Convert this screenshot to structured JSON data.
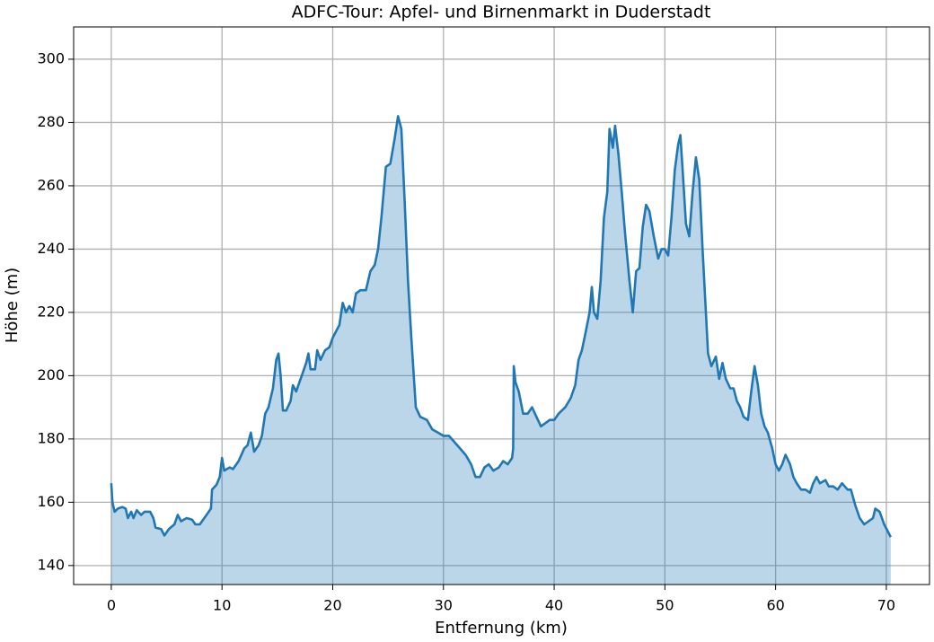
{
  "chart_data": {
    "type": "area",
    "title": "ADFC-Tour: Apfel- und Birnenmarkt in Duderstadt",
    "xlabel": "Entfernung (km)",
    "ylabel": "Höhe (m)",
    "color": "#1f77b4",
    "grid": true,
    "xlim": [
      -3.4,
      73.9
    ],
    "ylim": [
      134,
      310.2
    ],
    "xticks": [
      0,
      10,
      20,
      30,
      40,
      50,
      60,
      70
    ],
    "yticks": [
      140,
      160,
      180,
      200,
      220,
      240,
      260,
      280,
      300
    ],
    "x": [
      0,
      0.1,
      0.3,
      0.6,
      1,
      1.3,
      1.5,
      1.8,
      2,
      2.3,
      2.7,
      3,
      3.5,
      3.8,
      4,
      4.5,
      4.8,
      5.2,
      5.7,
      6,
      6.3,
      6.8,
      7.3,
      7.6,
      8,
      8.5,
      9,
      9.1,
      9.5,
      9.8,
      10,
      10.2,
      10.7,
      11,
      11.5,
      12,
      12.3,
      12.6,
      12.9,
      13.3,
      13.6,
      13.9,
      14.2,
      14.6,
      14.9,
      15.1,
      15.3,
      15.5,
      15.8,
      16.2,
      16.4,
      16.7,
      17,
      17.3,
      17.6,
      17.8,
      18,
      18.4,
      18.6,
      18.9,
      19.3,
      19.7,
      20,
      20.3,
      20.6,
      20.9,
      21.2,
      21.5,
      21.8,
      22.1,
      22.5,
      23,
      23.4,
      23.8,
      24.1,
      24.4,
      24.8,
      25.2,
      25.6,
      25.9,
      26.2,
      26.5,
      26.8,
      27.1,
      27.3,
      27.5,
      27.9,
      28.5,
      29,
      29.5,
      30,
      30.5,
      31,
      31.5,
      32,
      32.5,
      32.9,
      33.3,
      33.7,
      34.1,
      34.5,
      35,
      35.4,
      35.8,
      36.2,
      36.3,
      36.35,
      36.5,
      36.8,
      37.2,
      37.6,
      38,
      38.4,
      38.8,
      39.2,
      39.6,
      40,
      40.4,
      41,
      41.5,
      41.9,
      42.2,
      42.5,
      42.8,
      43.2,
      43.4,
      43.6,
      43.9,
      44.2,
      44.5,
      44.8,
      45,
      45.3,
      45.5,
      45.8,
      46.1,
      46.4,
      46.8,
      47.1,
      47.4,
      47.7,
      48,
      48.3,
      48.6,
      49,
      49.4,
      49.7,
      50,
      50.3,
      50.6,
      50.9,
      51.2,
      51.4,
      51.6,
      51.9,
      52.2,
      52.5,
      52.8,
      53.1,
      53.4,
      53.7,
      53.9,
      54.2,
      54.6,
      54.9,
      55.2,
      55.5,
      55.9,
      56.2,
      56.5,
      56.8,
      57.1,
      57.5,
      57.8,
      58.1,
      58.4,
      58.7,
      59,
      59.3,
      59.7,
      60,
      60.3,
      60.6,
      60.9,
      61.3,
      61.6,
      61.9,
      62.3,
      62.7,
      63.1,
      63.4,
      63.7,
      64,
      64.5,
      64.8,
      65.2,
      65.6,
      66,
      66.5,
      66.8,
      67.2,
      67.6,
      68,
      68.4,
      68.8,
      69,
      69.4,
      69.8,
      70.1,
      70.4
    ],
    "values": [
      166,
      160,
      157,
      158,
      158.5,
      158,
      155,
      157,
      155,
      157.5,
      156,
      157,
      157,
      155,
      152,
      151.5,
      149.5,
      151.5,
      153,
      156,
      154,
      155,
      154.5,
      153,
      153,
      155.5,
      158,
      164,
      165.5,
      168,
      174,
      170,
      171,
      170.5,
      173,
      177,
      178,
      182,
      176,
      178,
      181,
      188,
      190,
      196,
      205,
      207,
      200,
      189,
      189,
      192,
      197,
      195,
      198,
      201,
      204,
      207,
      202,
      202,
      208,
      205,
      208,
      209,
      212,
      214,
      216,
      223,
      220,
      222,
      220,
      226,
      227,
      227,
      233,
      235,
      240,
      250,
      266,
      267,
      275,
      282,
      278,
      255,
      230,
      212,
      201,
      190,
      187,
      186,
      183,
      182,
      181,
      181,
      179,
      177,
      175,
      172,
      168,
      168,
      171,
      172,
      170,
      171,
      173,
      172,
      174,
      177,
      203,
      198,
      195,
      188,
      188,
      190,
      187,
      184,
      185,
      186,
      186,
      188,
      190,
      193,
      197,
      205,
      208,
      213,
      220,
      228,
      220,
      218,
      230,
      250,
      258,
      278,
      272,
      279,
      270,
      258,
      245,
      230,
      220,
      233,
      234,
      247,
      254,
      252,
      244,
      237,
      240,
      240,
      238,
      250,
      265,
      273,
      276,
      265,
      248,
      244,
      258,
      269,
      262,
      240,
      220,
      207,
      203,
      206,
      199,
      204,
      199,
      196,
      196,
      192,
      190,
      187,
      186,
      195,
      203,
      197,
      188,
      184,
      182,
      177,
      172,
      170,
      172,
      175,
      172,
      168,
      166,
      164,
      164,
      163,
      166,
      168,
      166,
      167,
      165,
      165,
      164,
      166,
      164,
      164,
      159,
      155,
      153,
      154,
      155,
      158,
      157,
      153,
      151,
      149
    ]
  }
}
